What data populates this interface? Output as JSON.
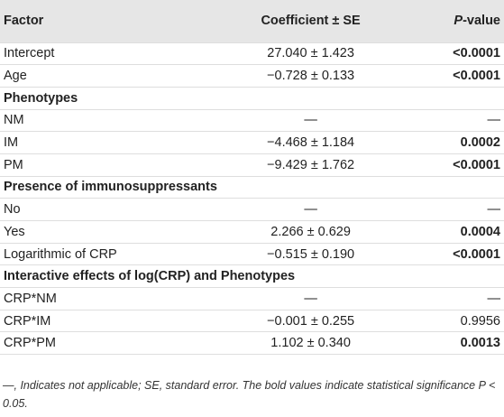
{
  "table": {
    "headers": {
      "factor": "Factor",
      "coef": "Coefficient ± SE",
      "p_italic": "P",
      "p_rest": "-value"
    },
    "rows": [
      {
        "factor": "Intercept",
        "coef": "27.040 ± 1.423",
        "p": "<0.0001",
        "bold": true
      },
      {
        "factor": "Age",
        "coef": "−0.728 ± 0.133",
        "p": "<0.0001",
        "bold": true
      },
      {
        "section": "Phenotypes"
      },
      {
        "factor": "NM",
        "coef": "—",
        "p": "—",
        "bold": false
      },
      {
        "factor": "IM",
        "coef": "−4.468 ± 1.184",
        "p": "0.0002",
        "bold": true
      },
      {
        "factor": "PM",
        "coef": "−9.429 ± 1.762",
        "p": "<0.0001",
        "bold": true
      },
      {
        "section": "Presence of immunosuppressants"
      },
      {
        "factor": "No",
        "coef": "—",
        "p": "—",
        "bold": false
      },
      {
        "factor": "Yes",
        "coef": "2.266 ± 0.629",
        "p": "0.0004",
        "bold": true
      },
      {
        "factor": "Logarithmic of CRP",
        "coef": "−0.515 ± 0.190",
        "p": "<0.0001",
        "bold": true
      },
      {
        "section": "Interactive effects of log(CRP) and Phenotypes"
      },
      {
        "factor": "CRP*NM",
        "coef": "—",
        "p": "—",
        "bold": false
      },
      {
        "factor": "CRP*IM",
        "coef": "−0.001 ± 0.255",
        "p": "0.9956",
        "bold": false
      },
      {
        "factor": "CRP*PM",
        "coef": "1.102 ± 0.340",
        "p": "0.0013",
        "bold": true
      }
    ]
  },
  "footnote": "—, Indicates not applicable; SE, standard error. The bold values indicate statistical significance P < 0.05."
}
